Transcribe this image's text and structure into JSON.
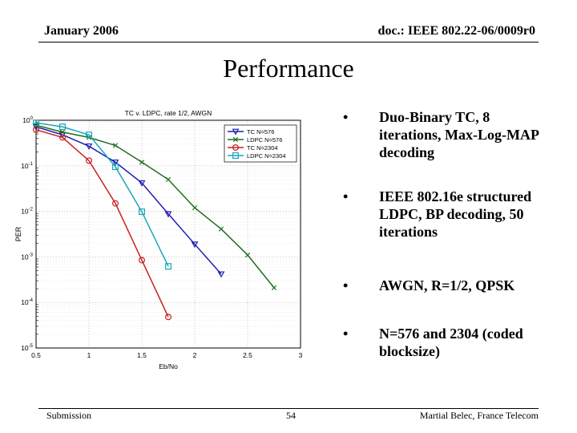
{
  "header": {
    "date": "January 2006",
    "doc": "doc.: IEEE 802.22-06/0009r0"
  },
  "title": "Performance",
  "bullets": [
    "Duo-Binary TC, 8 iterations, Max-Log-MAP decoding",
    "IEEE 802.16e structured LDPC, BP decoding, 50 iterations",
    "AWGN, R=1/2, QPSK",
    "N=576 and 2304 (coded blocksize)"
  ],
  "footer": {
    "left": "Submission",
    "page": "54",
    "author": "Martial Belec, France Telecom"
  },
  "chart_data": {
    "type": "line",
    "title": "TC v. LDPC, rate 1/2, AWGN",
    "xlabel": "Eb/No",
    "ylabel": "PER",
    "xlim": [
      0.5,
      3
    ],
    "ylim": [
      1e-05,
      1
    ],
    "yscale": "log",
    "grid": true,
    "legend_position": "top-right",
    "x_ticks": [
      "0.5",
      "1",
      "1.5",
      "2",
      "2.5",
      "3"
    ],
    "y_ticks": [
      {
        "base": "10",
        "exp": "0",
        "value": 1
      },
      {
        "base": "10",
        "exp": "-1",
        "value": 0.1
      },
      {
        "base": "10",
        "exp": "-2",
        "value": 0.01
      },
      {
        "base": "10",
        "exp": "-3",
        "value": 0.001
      },
      {
        "base": "10",
        "exp": "-4",
        "value": 0.0001
      },
      {
        "base": "10",
        "exp": "-5",
        "value": 1e-05
      }
    ],
    "series": [
      {
        "name": "TC N=576",
        "color": "#1f1fb4",
        "marker": "triangle-down",
        "x": [
          0.5,
          0.75,
          1.0,
          1.25,
          1.5,
          1.75,
          2.0,
          2.25
        ],
        "y": [
          0.72,
          0.48,
          0.27,
          0.12,
          0.042,
          0.0088,
          0.0019,
          0.00042
        ]
      },
      {
        "name": "LDPC N=576",
        "color": "#1e6e1e",
        "marker": "x",
        "x": [
          0.5,
          0.75,
          1.0,
          1.25,
          1.5,
          1.75,
          2.0,
          2.25,
          2.5,
          2.75
        ],
        "y": [
          0.78,
          0.55,
          0.42,
          0.28,
          0.12,
          0.05,
          0.012,
          0.0041,
          0.0011,
          0.00021
        ]
      },
      {
        "name": "TC N=2304",
        "color": "#c8201e",
        "marker": "circle",
        "x": [
          0.5,
          0.75,
          1.0,
          1.25,
          1.5,
          1.75
        ],
        "y": [
          0.62,
          0.42,
          0.13,
          0.015,
          0.00085,
          4.8e-05
        ]
      },
      {
        "name": "LDPC N=2304",
        "color": "#18a8b8",
        "marker": "square",
        "x": [
          0.5,
          0.75,
          1.0,
          1.25,
          1.5,
          1.75
        ],
        "y": [
          0.88,
          0.72,
          0.48,
          0.095,
          0.0098,
          0.00062
        ]
      }
    ]
  }
}
